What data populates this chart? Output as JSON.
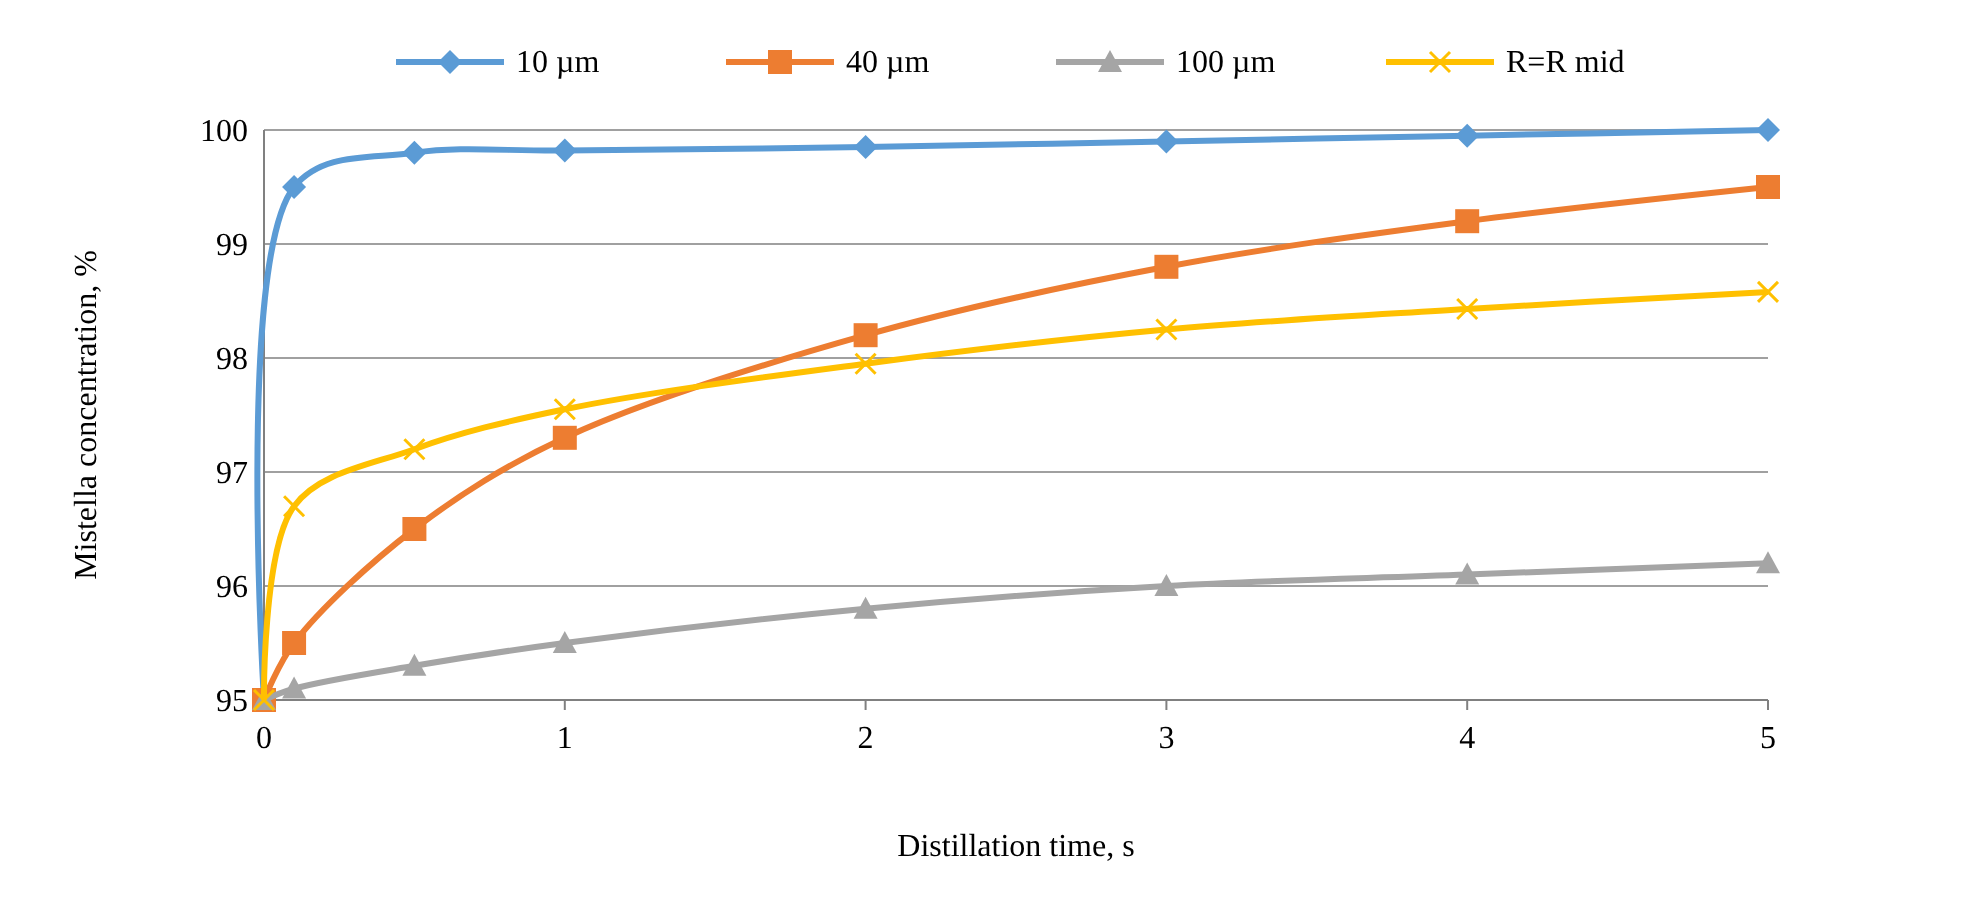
{
  "chart_data": {
    "type": "line",
    "xlabel": "Distillation time, s",
    "ylabel": "Mistella concentration, %",
    "xlim": [
      0,
      5
    ],
    "xticks": [
      0,
      1,
      2,
      3,
      4,
      5
    ],
    "ylim": [
      95,
      100
    ],
    "yticks": [
      95,
      96,
      97,
      98,
      99,
      100
    ],
    "grid": "y",
    "legend": "top",
    "series": [
      {
        "name": "10 µm",
        "color": "#5b9bd5",
        "marker": "diamond",
        "x": [
          0,
          0.1,
          0.5,
          1,
          2,
          3,
          4,
          5
        ],
        "values": [
          95,
          99.5,
          99.8,
          99.82,
          99.85,
          99.9,
          99.95,
          100
        ]
      },
      {
        "name": "40 µm",
        "color": "#ed7d31",
        "marker": "square",
        "x": [
          0,
          0.1,
          0.5,
          1,
          2,
          3,
          4,
          5
        ],
        "values": [
          95,
          95.5,
          96.5,
          97.3,
          98.2,
          98.8,
          99.2,
          99.5
        ]
      },
      {
        "name": "100 µm",
        "color": "#a5a5a5",
        "marker": "triangle",
        "x": [
          0,
          0.1,
          0.5,
          1,
          2,
          3,
          4,
          5
        ],
        "values": [
          95,
          95.1,
          95.3,
          95.5,
          95.8,
          96,
          96.1,
          96.2
        ]
      },
      {
        "name": "R=R mid",
        "color": "#ffc000",
        "marker": "cross",
        "x": [
          0,
          0.1,
          0.5,
          1,
          2,
          3,
          4,
          5
        ],
        "values": [
          95,
          96.7,
          97.2,
          97.55,
          97.95,
          98.25,
          98.43,
          98.58
        ]
      }
    ]
  }
}
